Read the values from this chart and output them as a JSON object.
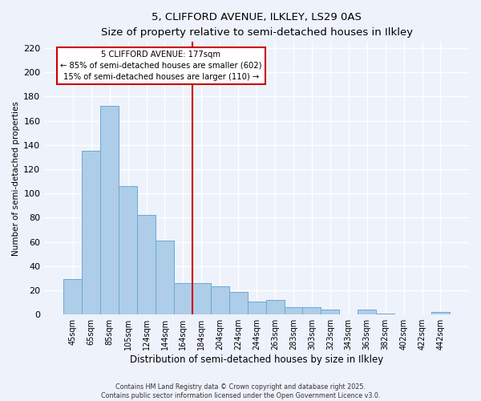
{
  "title": "5, CLIFFORD AVENUE, ILKLEY, LS29 0AS",
  "subtitle": "Size of property relative to semi-detached houses in Ilkley",
  "xlabel": "Distribution of semi-detached houses by size in Ilkley",
  "ylabel": "Number of semi-detached properties",
  "categories": [
    "45sqm",
    "65sqm",
    "85sqm",
    "105sqm",
    "124sqm",
    "144sqm",
    "164sqm",
    "184sqm",
    "204sqm",
    "224sqm",
    "244sqm",
    "263sqm",
    "283sqm",
    "303sqm",
    "323sqm",
    "343sqm",
    "363sqm",
    "382sqm",
    "402sqm",
    "422sqm",
    "442sqm"
  ],
  "values": [
    29,
    135,
    172,
    106,
    82,
    61,
    26,
    26,
    23,
    19,
    11,
    12,
    6,
    6,
    4,
    0,
    4,
    1,
    0,
    0,
    2
  ],
  "bar_color": "#aecde8",
  "bar_edge_color": "#6aaad4",
  "background_color": "#eef2fb",
  "grid_color": "#ffffff",
  "vline_color": "#cc0000",
  "vline_index": 7,
  "annotation_title": "5 CLIFFORD AVENUE: 177sqm",
  "annotation_line1": "← 85% of semi-detached houses are smaller (602)",
  "annotation_line2": "15% of semi-detached houses are larger (110) →",
  "annotation_box_facecolor": "#ffffff",
  "annotation_box_edgecolor": "#cc0000",
  "ylim": [
    0,
    225
  ],
  "yticks": [
    0,
    20,
    40,
    60,
    80,
    100,
    120,
    140,
    160,
    180,
    200,
    220
  ],
  "footer_line1": "Contains HM Land Registry data © Crown copyright and database right 2025.",
  "footer_line2": "Contains public sector information licensed under the Open Government Licence v3.0."
}
